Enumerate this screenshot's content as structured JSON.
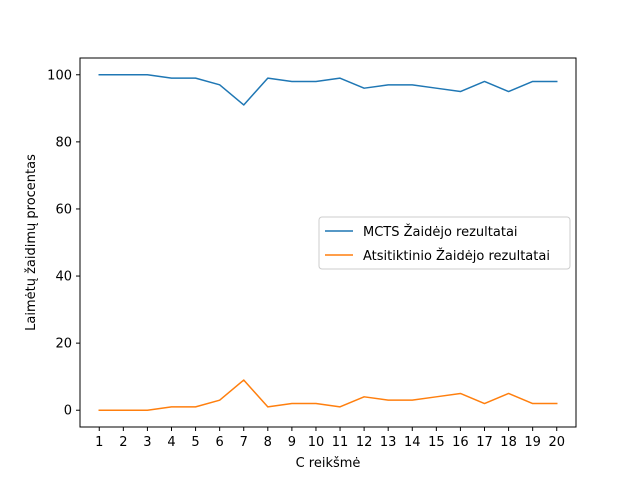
{
  "chart_data": {
    "type": "line",
    "title": "",
    "xlabel": "C reikšmė",
    "ylabel": "Laimėtų žaidimų procentas",
    "x": [
      1,
      2,
      3,
      4,
      5,
      6,
      7,
      8,
      9,
      10,
      11,
      12,
      13,
      14,
      15,
      16,
      17,
      18,
      19,
      20
    ],
    "x_ticks": [
      "1",
      "2",
      "3",
      "4",
      "5",
      "6",
      "7",
      "8",
      "9",
      "10",
      "11",
      "12",
      "13",
      "14",
      "15",
      "16",
      "17",
      "18",
      "19",
      "20"
    ],
    "y_ticks": [
      "0",
      "20",
      "40",
      "60",
      "80",
      "100"
    ],
    "xlim": [
      0.2,
      20.8
    ],
    "ylim": [
      -5,
      105
    ],
    "grid": false,
    "legend_position": "center-right",
    "series": [
      {
        "name": "MCTS Žaidėjo rezultatai",
        "color": "#1f77b4",
        "values": [
          100,
          100,
          100,
          99,
          99,
          97,
          91,
          99,
          98,
          98,
          99,
          96,
          97,
          97,
          96,
          95,
          98,
          95,
          98,
          98
        ]
      },
      {
        "name": "Atsitiktinio Žaidėjo rezultatai",
        "color": "#ff7f0e",
        "values": [
          0,
          0,
          0,
          1,
          1,
          3,
          9,
          1,
          2,
          2,
          1,
          4,
          3,
          3,
          4,
          5,
          2,
          5,
          2,
          2
        ]
      }
    ]
  }
}
